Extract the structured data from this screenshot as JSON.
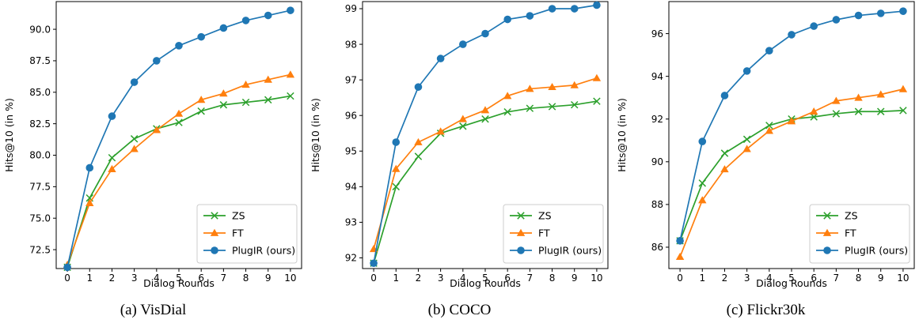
{
  "colors": {
    "ZS": "#2ca02c",
    "FT": "#ff7f0e",
    "PlugIR": "#1f77b4",
    "axis": "#000000",
    "legend_border": "#cccccc"
  },
  "chart_data": [
    {
      "type": "line",
      "caption": "(a) VisDial",
      "xlabel": "Dialog Rounds",
      "ylabel": "Hits@10 (in %)",
      "x": [
        0,
        1,
        2,
        3,
        4,
        5,
        6,
        7,
        8,
        9,
        10
      ],
      "xlim": [
        -0.5,
        10.5
      ],
      "ylim": [
        71.0,
        92.2
      ],
      "yticks": [
        72.5,
        75.0,
        77.5,
        80.0,
        82.5,
        85.0,
        87.5,
        90.0
      ],
      "ytick_labels": [
        "72.5",
        "75.0",
        "77.5",
        "80.0",
        "82.5",
        "85.0",
        "87.5",
        "90.0"
      ],
      "legend_position": "lower-right",
      "grid": false,
      "series": [
        {
          "name": "ZS",
          "marker": "x",
          "values": [
            71.1,
            76.6,
            79.8,
            81.3,
            82.1,
            82.6,
            83.5,
            84.0,
            84.2,
            84.4,
            84.7
          ]
        },
        {
          "name": "FT",
          "marker": "triangle",
          "values": [
            71.3,
            76.2,
            78.9,
            80.5,
            82.0,
            83.3,
            84.4,
            84.9,
            85.6,
            86.0,
            86.4
          ]
        },
        {
          "name": "PlugIR (ours)",
          "marker": "circle",
          "values": [
            71.1,
            79.0,
            83.1,
            85.8,
            87.5,
            88.7,
            89.4,
            90.1,
            90.7,
            91.1,
            91.5
          ]
        }
      ]
    },
    {
      "type": "line",
      "caption": "(b) COCO",
      "xlabel": "Dialog Rounds",
      "ylabel": "Hits@10 (in %)",
      "x": [
        0,
        1,
        2,
        3,
        4,
        5,
        6,
        7,
        8,
        9,
        10
      ],
      "xlim": [
        -0.5,
        10.5
      ],
      "ylim": [
        91.7,
        99.2
      ],
      "yticks": [
        92,
        93,
        94,
        95,
        96,
        97,
        98,
        99
      ],
      "ytick_labels": [
        "92",
        "93",
        "94",
        "95",
        "96",
        "97",
        "98",
        "99"
      ],
      "legend_position": "lower-right",
      "grid": false,
      "series": [
        {
          "name": "ZS",
          "marker": "x",
          "values": [
            91.85,
            94.0,
            94.85,
            95.5,
            95.7,
            95.9,
            96.1,
            96.2,
            96.25,
            96.3,
            96.4
          ]
        },
        {
          "name": "FT",
          "marker": "triangle",
          "values": [
            92.25,
            94.5,
            95.25,
            95.55,
            95.9,
            96.15,
            96.55,
            96.75,
            96.8,
            96.85,
            97.05
          ]
        },
        {
          "name": "PlugIR (ours)",
          "marker": "circle",
          "values": [
            91.85,
            95.25,
            96.8,
            97.6,
            98.0,
            98.3,
            98.7,
            98.8,
            99.0,
            99.0,
            99.1
          ]
        }
      ]
    },
    {
      "type": "line",
      "caption": "(c) Flickr30k",
      "xlabel": "Dialog Rounds",
      "ylabel": "Hits@10 (in %)",
      "x": [
        0,
        1,
        2,
        3,
        4,
        5,
        6,
        7,
        8,
        9,
        10
      ],
      "xlim": [
        -0.5,
        10.5
      ],
      "ylim": [
        85.0,
        97.5
      ],
      "yticks": [
        86,
        88,
        90,
        92,
        94,
        96
      ],
      "ytick_labels": [
        "86",
        "88",
        "90",
        "92",
        "94",
        "96"
      ],
      "legend_position": "lower-right",
      "grid": false,
      "series": [
        {
          "name": "ZS",
          "marker": "x",
          "values": [
            86.3,
            89.0,
            90.4,
            91.05,
            91.7,
            92.0,
            92.1,
            92.25,
            92.35,
            92.35,
            92.4
          ]
        },
        {
          "name": "FT",
          "marker": "triangle",
          "values": [
            85.55,
            88.2,
            89.65,
            90.6,
            91.45,
            91.9,
            92.35,
            92.85,
            93.0,
            93.15,
            93.4
          ]
        },
        {
          "name": "PlugIR (ours)",
          "marker": "circle",
          "values": [
            86.3,
            90.95,
            93.1,
            94.25,
            95.2,
            95.95,
            96.35,
            96.65,
            96.85,
            96.95,
            97.05
          ]
        }
      ]
    }
  ]
}
